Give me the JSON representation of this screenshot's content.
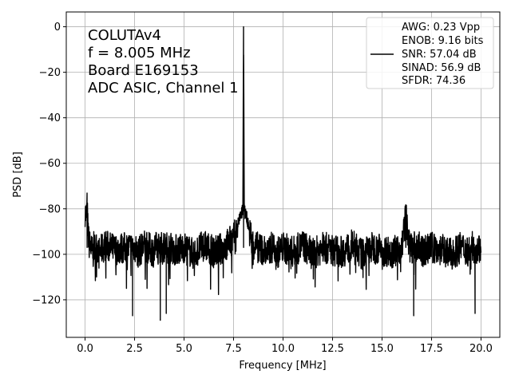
{
  "chart_data": {
    "type": "line",
    "xlabel": "Frequency [MHz]",
    "ylabel": "PSD [dB]",
    "xlim": [
      -0.95,
      20.95
    ],
    "ylim": [
      -136.5,
      6.5
    ],
    "xticks": [
      0.0,
      2.5,
      5.0,
      7.5,
      10.0,
      12.5,
      15.0,
      17.5,
      20.0
    ],
    "xtick_labels": [
      "0.0",
      "2.5",
      "5.0",
      "7.5",
      "10.0",
      "12.5",
      "15.0",
      "17.5",
      "20.0"
    ],
    "yticks": [
      0,
      -20,
      -40,
      -60,
      -80,
      -100,
      -120
    ],
    "ytick_labels": [
      "0",
      "−20",
      "−40",
      "−60",
      "−80",
      "−100",
      "−120"
    ],
    "grid": true,
    "legend_position": "top-right",
    "annotation_position": "top-left",
    "series": [
      {
        "color": "#000000",
        "noise_floor_db": -97,
        "peak": {
          "x": 8.005,
          "y": 0
        },
        "dips": [
          {
            "x": 2.4,
            "y": -127
          },
          {
            "x": 3.8,
            "y": -129
          },
          {
            "x": 4.1,
            "y": -126
          },
          {
            "x": 16.6,
            "y": -127
          },
          {
            "x": 19.7,
            "y": -126
          }
        ],
        "spurs": [
          {
            "x": 0.1,
            "y": -79
          },
          {
            "x": 16.2,
            "y": -83
          }
        ],
        "points": [
          [
            0.0,
            -81
          ],
          [
            0.05,
            -84
          ],
          [
            0.1,
            -79
          ],
          [
            0.15,
            -90
          ],
          [
            0.2,
            -95
          ],
          [
            0.5,
            -102
          ],
          [
            1.0,
            -96
          ],
          [
            1.5,
            -98
          ],
          [
            2.0,
            -97
          ],
          [
            2.4,
            -127
          ],
          [
            2.6,
            -100
          ],
          [
            3.0,
            -96
          ],
          [
            3.5,
            -99
          ],
          [
            3.8,
            -129
          ],
          [
            4.1,
            -126
          ],
          [
            4.5,
            -98
          ],
          [
            5.0,
            -97
          ],
          [
            5.5,
            -100
          ],
          [
            6.0,
            -96
          ],
          [
            6.5,
            -99
          ],
          [
            7.0,
            -97
          ],
          [
            7.5,
            -93
          ],
          [
            7.7,
            -88
          ],
          [
            7.8,
            -84
          ],
          [
            7.9,
            -82
          ],
          [
            7.97,
            -80
          ],
          [
            8.005,
            0
          ],
          [
            8.04,
            -80
          ],
          [
            8.1,
            -82
          ],
          [
            8.2,
            -85
          ],
          [
            8.3,
            -90
          ],
          [
            8.5,
            -96
          ],
          [
            9.0,
            -98
          ],
          [
            9.5,
            -101
          ],
          [
            10.0,
            -97
          ],
          [
            10.5,
            -99
          ],
          [
            11.0,
            -96
          ],
          [
            11.5,
            -100
          ],
          [
            12.0,
            -97
          ],
          [
            12.5,
            -98
          ],
          [
            13.0,
            -99
          ],
          [
            13.5,
            -96
          ],
          [
            14.0,
            -100
          ],
          [
            14.5,
            -97
          ],
          [
            15.0,
            -98
          ],
          [
            15.5,
            -99
          ],
          [
            16.0,
            -97
          ],
          [
            16.2,
            -83
          ],
          [
            16.4,
            -98
          ],
          [
            16.6,
            -127
          ],
          [
            17.0,
            -99
          ],
          [
            17.5,
            -97
          ],
          [
            18.0,
            -98
          ],
          [
            18.5,
            -100
          ],
          [
            19.0,
            -97
          ],
          [
            19.5,
            -99
          ],
          [
            19.7,
            -126
          ],
          [
            20.0,
            -95
          ]
        ]
      }
    ],
    "annotation_lines": [
      "COLUTAv4",
      "f = 8.005 MHz",
      "Board E169153",
      "ADC ASIC, Channel  1"
    ],
    "legend_lines": [
      "AWG: 0.23 Vpp",
      "ENOB: 9.16 bits",
      "SNR: 57.04 dB",
      "SINAD: 56.9 dB",
      "SFDR: 74.36"
    ]
  }
}
